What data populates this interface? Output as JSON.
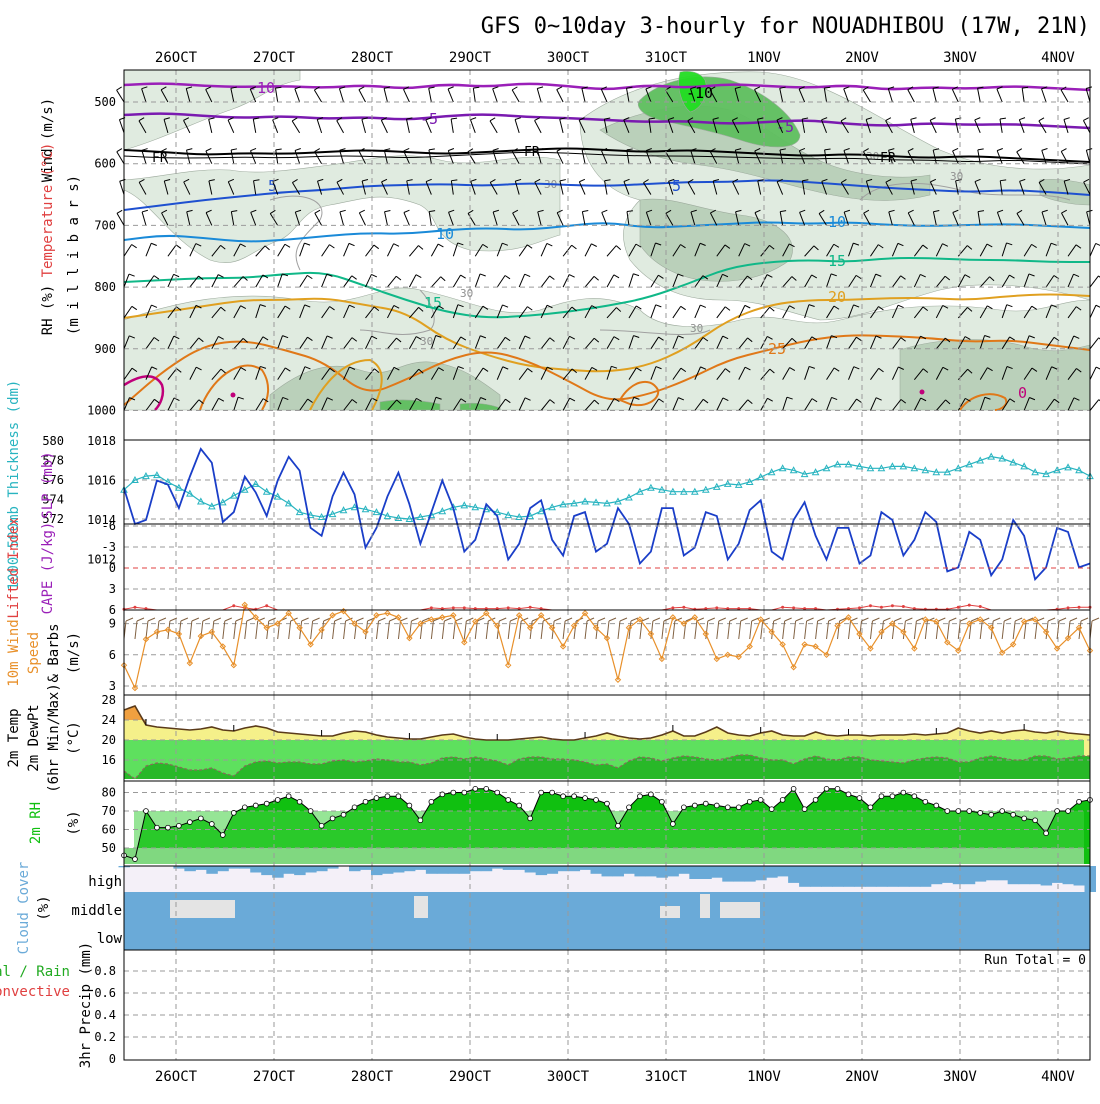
{
  "title": "GFS 0~10day 3-hourly for NOUADHIBOU (17W, 21N)",
  "x_labels": [
    "26OCT",
    "27OCT",
    "28OCT",
    "29OCT",
    "30OCT",
    "31OCT",
    "1NOV",
    "2NOV",
    "3NOV",
    "4NOV"
  ],
  "colors": {
    "t_neg10": "#9a1fb8",
    "t_neg5": "#7a1ab0",
    "t_0": "#c0007a",
    "t_5": "#1e50d0",
    "t_10": "#1a8ad8",
    "t_15": "#10b888",
    "t_20": "#e0a020",
    "t_25": "#e07818",
    "fr": "#000000",
    "rh_light": "#dfeadf",
    "rh_mid": "#b9cfb9",
    "rh_dark": "#5fbf5f",
    "rh_bright": "#22dd22",
    "slp": "#1a3ec8",
    "thick": "#28b4c0",
    "li": "#e04040",
    "wind10": "#e8902a",
    "barb": "#806040",
    "temp_fill": "#f5f08a",
    "temp_hot": "#f0a040",
    "dew_fill_light": "#5ee05e",
    "dew_fill_dark": "#28b828",
    "rh2m_dark": "#10c010",
    "rh2m_mid": "#40d040",
    "rh2m_light": "#80d880",
    "cloud": "#6aaad8",
    "cloud_bg": "#f4f0f8",
    "precip_text": "#000000"
  },
  "panels": {
    "upper": {
      "ylabels": [
        "Wind (m/s)",
        "Temperature (°C)",
        "RH (%)",
        "(m i l l i b a r s)"
      ],
      "ticks": [
        "500",
        "600",
        "700",
        "800",
        "900",
        "1000"
      ],
      "contour_labels": {
        "neg10": "-10",
        "neg5": "-5",
        "zero": "0",
        "fr": "FR",
        "five": "5",
        "ten": "10",
        "fifteen": "15",
        "twenty": "20",
        "twentyfive": "25",
        "rh30": "30"
      }
    },
    "pressure": {
      "ylabel_thick": "1000-500mb Thickness (dm)",
      "ylabel_slp": "SLP (mb)",
      "ticks_left": [
        "580",
        "578",
        "576",
        "574",
        "572"
      ],
      "ticks_right": [
        "1018",
        "1016",
        "1014",
        "1012"
      ]
    },
    "stability": {
      "ylabel_li": "Lifted Index",
      "ylabel_cape": "CAPE (J/kg)",
      "ticks": [
        "-6",
        "-3",
        "0",
        "3",
        "6"
      ]
    },
    "wind": {
      "ylabel_a": "10m Wind",
      "ylabel_b": "Speed",
      "ylabel_c": "& Barbs",
      "ylabel_d": "(m/s)",
      "ticks": [
        "9",
        "6",
        "3"
      ]
    },
    "temp": {
      "ylabel_a": "2m Temp",
      "ylabel_b": "2m DewPt",
      "ylabel_c": "(6hr Min/Max)",
      "ylabel_d": "(°C)",
      "ticks": [
        "28",
        "24",
        "20",
        "16"
      ]
    },
    "rh2m": {
      "ylabel_a": "2m RH",
      "ylabel_b": "(%)",
      "ticks": [
        "80",
        "70",
        "60",
        "50"
      ]
    },
    "cloud": {
      "ylabel_a": "Cloud Cover",
      "ylabel_b": "(%)",
      "levels": [
        "high",
        "middle",
        "low"
      ]
    },
    "precip": {
      "ylabel_a": "tal / Rain",
      "ylabel_b": "Convective",
      "ylabel_c": "3hr Precip (mm)",
      "ticks": [
        "0.8",
        "0.6",
        "0.4",
        "0.2",
        "0"
      ],
      "run_total": "Run Total = 0"
    }
  },
  "chart_data": [
    {
      "type": "line",
      "name": "slp",
      "x_unit": "3-hourly steps from 25OCT 18Z",
      "values": [
        1015.6,
        1013.8,
        1014.0,
        1016.0,
        1015.8,
        1014.6,
        1016.2,
        1017.6,
        1016.9,
        1013.9,
        1014.4,
        1016.2,
        1015.4,
        1014.2,
        1016.0,
        1017.2,
        1016.5,
        1013.6,
        1013.2,
        1015.2,
        1016.4,
        1015.3,
        1012.6,
        1013.6,
        1015.2,
        1016.4,
        1014.8,
        1012.8,
        1014.4,
        1016.0,
        1014.6,
        1012.4,
        1013.0,
        1014.8,
        1014.2,
        1012.0,
        1012.8,
        1014.6,
        1015.0,
        1013.0,
        1012.2,
        1014.2,
        1014.4,
        1012.4,
        1012.8,
        1014.6,
        1013.8,
        1011.8,
        1012.4,
        1014.6,
        1014.6,
        1012.2,
        1012.6,
        1014.4,
        1014.2,
        1012.0,
        1012.8,
        1014.5,
        1015.0,
        1012.4,
        1012.0,
        1014.0,
        1014.9,
        1013.2,
        1012.0,
        1013.6,
        1013.6,
        1011.8,
        1012.2,
        1014.4,
        1014.0,
        1012.2,
        1013.0,
        1014.4,
        1013.9,
        1011.4,
        1011.6,
        1013.4,
        1013.0,
        1011.2,
        1012.0,
        1014.0,
        1013.2,
        1011.0,
        1011.6,
        1013.6,
        1013.4,
        1011.6,
        1011.8
      ]
    },
    {
      "type": "line",
      "name": "thickness",
      "values": [
        575.0,
        576.0,
        576.4,
        576.5,
        575.8,
        575.2,
        574.6,
        573.8,
        573.3,
        573.7,
        574.4,
        575.0,
        575.6,
        574.8,
        574.3,
        573.6,
        572.7,
        572.4,
        572.2,
        572.5,
        572.9,
        573.2,
        573.0,
        572.7,
        572.3,
        572.1,
        572.0,
        572.2,
        572.4,
        572.8,
        573.2,
        573.4,
        573.2,
        573.0,
        572.7,
        572.4,
        572.2,
        572.3,
        572.8,
        573.2,
        573.5,
        573.6,
        573.8,
        573.7,
        573.6,
        573.8,
        574.2,
        574.8,
        575.2,
        575.0,
        574.8,
        574.8,
        574.8,
        575.0,
        575.3,
        575.6,
        575.5,
        575.8,
        576.3,
        576.8,
        577.2,
        577.0,
        576.6,
        576.8,
        577.2,
        577.6,
        577.6,
        577.4,
        577.2,
        577.2,
        577.4,
        577.4,
        577.2,
        577.0,
        576.8,
        576.8,
        577.2,
        577.6,
        578.0,
        578.4,
        578.2,
        577.8,
        577.4,
        576.8,
        576.6,
        577.0,
        577.3,
        577.0,
        576.4
      ]
    },
    {
      "type": "line",
      "name": "lifted_index",
      "values": [
        5.9,
        5.6,
        5.8,
        6.0,
        6.0,
        6.0,
        6.0,
        6.0,
        6.0,
        6.0,
        5.4,
        5.7,
        5.9,
        5.4,
        6.0,
        6.0,
        6.0,
        6.0,
        6.0,
        6.0,
        6.0,
        6.0,
        6.0,
        6.0,
        6.0,
        6.0,
        6.0,
        6.0,
        5.7,
        5.8,
        5.7,
        5.7,
        5.8,
        5.8,
        5.8,
        5.7,
        5.8,
        5.6,
        5.8,
        6.0,
        6.0,
        6.0,
        6.0,
        6.0,
        6.0,
        6.0,
        6.0,
        6.0,
        6.0,
        6.0,
        5.7,
        5.6,
        5.9,
        5.8,
        5.7,
        5.8,
        5.8,
        5.8,
        6.0,
        6.0,
        5.6,
        5.7,
        5.8,
        5.8,
        6.0,
        5.9,
        5.8,
        5.7,
        5.4,
        5.6,
        5.4,
        5.5,
        5.8,
        5.9,
        5.9,
        5.9,
        5.6,
        5.3,
        5.5,
        6.0,
        6.0,
        6.0,
        6.0,
        6.0,
        6.0,
        5.9,
        5.7,
        5.6,
        5.6
      ]
    },
    {
      "type": "line",
      "name": "wind10m_speed",
      "values": [
        5.0,
        2.8,
        7.5,
        8.2,
        8.4,
        8.0,
        5.2,
        7.8,
        8.2,
        6.8,
        5.0,
        10.8,
        9.6,
        8.6,
        9.0,
        10.0,
        8.6,
        7.0,
        8.4,
        9.8,
        10.2,
        9.0,
        8.2,
        9.8,
        10.0,
        9.6,
        7.6,
        9.0,
        9.4,
        9.6,
        9.8,
        7.2,
        9.2,
        10.0,
        8.8,
        5.0,
        9.8,
        8.6,
        9.8,
        8.6,
        6.8,
        8.8,
        10.0,
        8.6,
        7.6,
        3.6,
        8.6,
        9.4,
        8.0,
        5.6,
        9.6,
        9.0,
        9.6,
        8.0,
        5.6,
        6.0,
        5.8,
        6.8,
        9.4,
        8.2,
        7.0,
        4.8,
        7.0,
        6.8,
        6.0,
        8.8,
        9.6,
        8.0,
        6.6,
        8.2,
        9.0,
        8.2,
        6.6,
        9.4,
        9.2,
        7.2,
        6.4,
        9.0,
        9.4,
        8.6,
        6.2,
        7.0,
        9.2,
        9.4,
        8.2,
        6.6,
        7.6,
        8.6,
        6.4
      ]
    },
    {
      "type": "area",
      "name": "temp2m",
      "values": [
        26.0,
        26.8,
        23.0,
        22.6,
        22.4,
        22.2,
        22.0,
        22.2,
        22.6,
        22.0,
        21.8,
        22.4,
        22.8,
        22.4,
        21.6,
        21.4,
        21.2,
        21.0,
        20.8,
        20.8,
        21.4,
        21.8,
        21.6,
        21.0,
        20.6,
        20.4,
        20.2,
        20.2,
        20.6,
        21.0,
        21.2,
        20.6,
        20.2,
        20.0,
        20.0,
        20.0,
        20.2,
        20.4,
        20.6,
        20.2,
        20.0,
        20.0,
        20.4,
        20.8,
        21.4,
        20.8,
        20.4,
        20.2,
        20.4,
        21.0,
        21.8,
        20.8,
        20.8,
        21.6,
        22.6,
        21.4,
        21.0,
        20.8,
        21.4,
        21.8,
        21.0,
        20.8,
        20.8,
        21.6,
        21.0,
        20.8,
        21.0,
        21.0,
        20.8,
        21.0,
        21.0,
        21.0,
        21.2,
        21.0,
        21.2,
        21.4,
        22.4,
        21.8,
        21.4,
        21.8,
        21.4,
        21.8,
        22.0,
        21.6,
        21.4,
        21.8,
        21.4,
        21.2,
        21.0
      ]
    },
    {
      "type": "line",
      "name": "dewpoint2m",
      "values": [
        13.8,
        12.2,
        14.8,
        15.4,
        15.2,
        14.6,
        14.0,
        14.0,
        14.4,
        13.4,
        12.8,
        14.8,
        15.6,
        15.8,
        15.4,
        15.6,
        15.6,
        15.2,
        15.2,
        15.8,
        16.0,
        15.6,
        15.8,
        16.2,
        16.0,
        15.6,
        15.6,
        15.0,
        15.4,
        16.4,
        16.6,
        16.2,
        16.6,
        16.2,
        15.8,
        15.0,
        16.2,
        16.6,
        16.6,
        16.2,
        16.2,
        16.0,
        15.6,
        15.0,
        15.2,
        14.4,
        15.8,
        16.6,
        16.4,
        15.8,
        16.4,
        16.8,
        16.6,
        16.2,
        16.0,
        16.4,
        17.0,
        17.0,
        16.4,
        16.0,
        16.0,
        15.2,
        16.2,
        16.8,
        16.2,
        16.0,
        16.6,
        16.6,
        16.0,
        15.8,
        15.6,
        15.4,
        16.0,
        16.4,
        16.6,
        16.4,
        15.6,
        15.6,
        16.4,
        16.8,
        16.4,
        16.0,
        16.0,
        16.8,
        16.8,
        16.2,
        16.4,
        16.8,
        16.8
      ]
    },
    {
      "type": "area",
      "name": "rh2m",
      "values": [
        46,
        44,
        70,
        61,
        61,
        62,
        64,
        66,
        63,
        57,
        69,
        72,
        73,
        74,
        76,
        78,
        75,
        70,
        62,
        66,
        68,
        72,
        75,
        77,
        78,
        78,
        73,
        65,
        75,
        79,
        80,
        80,
        82,
        82,
        80,
        76,
        73,
        66,
        80,
        80,
        78,
        78,
        77,
        76,
        74,
        62,
        72,
        78,
        79,
        75,
        63,
        72,
        73,
        74,
        73,
        72,
        72,
        75,
        76,
        71,
        76,
        82,
        71,
        76,
        82,
        82,
        79,
        77,
        72,
        78,
        78,
        80,
        78,
        75,
        73,
        70,
        70,
        70,
        69,
        68,
        70,
        68,
        66,
        65,
        58,
        70,
        70,
        75,
        76
      ]
    },
    {
      "type": "bar",
      "name": "cloud_cover_high",
      "values": [
        5,
        0,
        0,
        0,
        0,
        10,
        20,
        15,
        30,
        20,
        10,
        10,
        25,
        35,
        45,
        30,
        35,
        25,
        20,
        10,
        0,
        20,
        15,
        35,
        30,
        25,
        20,
        15,
        30,
        30,
        30,
        30,
        20,
        20,
        10,
        15,
        15,
        25,
        35,
        30,
        20,
        20,
        15,
        30,
        40,
        40,
        30,
        40,
        40,
        45,
        40,
        30,
        50,
        50,
        45,
        60,
        60,
        60,
        55,
        45,
        40,
        65,
        80,
        80,
        80,
        80,
        80,
        80,
        80,
        80,
        80,
        80,
        80,
        80,
        70,
        65,
        70,
        70,
        60,
        55,
        55,
        70,
        70,
        70,
        75,
        65,
        70,
        75,
        100
      ]
    },
    {
      "type": "bar",
      "name": "precip_3hr",
      "values": [
        0,
        0,
        0,
        0,
        0,
        0,
        0,
        0,
        0,
        0
      ],
      "run_total": 0
    }
  ]
}
